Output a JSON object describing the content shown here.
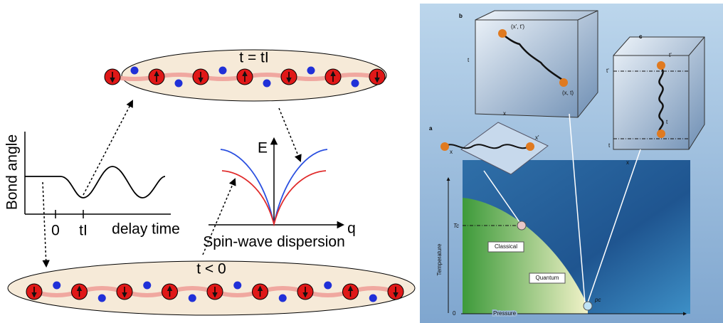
{
  "left": {
    "top_chain_label": "t = tI",
    "bottom_chain_label": "t < 0",
    "bond_plot": {
      "y_label": "Bond angle",
      "tick_zero": "0",
      "tick_t1": "tI",
      "x_label": "delay time"
    },
    "dispersion": {
      "energy_label": "E",
      "q_label": "q",
      "caption": "Spin-wave dispersion"
    }
  },
  "right": {
    "panel_b": {
      "letter": "b",
      "point_top": "(x', t')",
      "point_bottom": "(x, t)",
      "t_label": "t",
      "x_label": "x"
    },
    "panel_c": {
      "letter": "c",
      "t_prime_top": "t'",
      "t_prime_side": "t'",
      "t_side": "t",
      "t_bottom": "t",
      "x_label": "x"
    },
    "panel_a": {
      "letter": "a",
      "x_label": "x",
      "x_prime_label": "x'"
    },
    "phase": {
      "tc_label": "Tc",
      "classical": "Classical",
      "quantum": "Quantum",
      "pc_label": "pc",
      "y_label": "Temperature",
      "origin": "0",
      "x_label": "Pressure"
    }
  }
}
